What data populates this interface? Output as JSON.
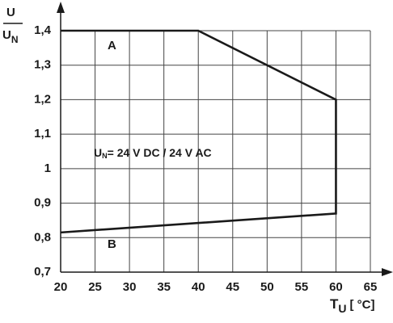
{
  "chart_data": {
    "type": "line",
    "ylabel_numerator": "U",
    "ylabel_denominator": "U",
    "ylabel_denominator_sub": "N",
    "xlabel": "T",
    "xlabel_sub": "U",
    "xlabel_unit": "[ °C]",
    "annotation": {
      "main": "U",
      "sub": "N",
      "rest": "= 24 V DC / 24 V AC"
    },
    "region_labels": [
      "A",
      "B"
    ],
    "series": [
      {
        "color": "#1a1a1a",
        "x": [
          20,
          40,
          60,
          60,
          20
        ],
        "values": [
          1.4,
          1.4,
          1.2,
          0.87,
          0.815
        ]
      }
    ],
    "xlim": [
      20,
      65
    ],
    "xticks": [
      20,
      25,
      30,
      35,
      40,
      45,
      50,
      55,
      60,
      65
    ],
    "ylim": [
      0.7,
      1.4
    ],
    "yticks": [
      {
        "value": 0.7,
        "label": "0,7"
      },
      {
        "value": 0.8,
        "label": "0,8"
      },
      {
        "value": 0.9,
        "label": "0,9"
      },
      1,
      {
        "value": 1.1,
        "label": "1,1"
      },
      {
        "value": 1.2,
        "label": "1,2"
      },
      {
        "value": 1.3,
        "label": "1,3"
      },
      {
        "value": 1.4,
        "label": "1,4"
      }
    ],
    "grid": true
  }
}
